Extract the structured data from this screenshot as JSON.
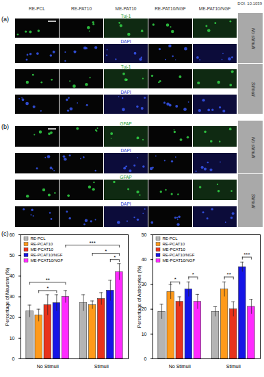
{
  "doi": "DOI: 10.1039",
  "columns": [
    "RE-PCL",
    "RE-PAT10",
    "ME-PAT10",
    "RE-PAT10/NGF",
    "ME-PAT10/NGF"
  ],
  "panels": [
    {
      "label": "(a)",
      "groups": [
        {
          "condition": "No stimuli",
          "rows": [
            "Tuj-1",
            "DAPI"
          ]
        },
        {
          "condition": "Stimuli",
          "rows": [
            "Tuj-1",
            "DAPI"
          ]
        }
      ]
    },
    {
      "label": "(b)",
      "groups": [
        {
          "condition": "No stimuli",
          "rows": [
            "GFAP",
            "DAPI"
          ]
        },
        {
          "condition": "Stimuli",
          "rows": [
            "GFAP",
            "DAPI"
          ]
        }
      ]
    }
  ],
  "chart_panel_label": "(c)",
  "chart_data": [
    {
      "type": "bar",
      "ylabel": "Percentage of Neurons (%)",
      "categories": [
        "No Stimuli",
        "Stimuli"
      ],
      "series": [
        {
          "name": "RE-PCL",
          "color": "#b4b4b4",
          "values": [
            23,
            27
          ],
          "errors": [
            3,
            4
          ]
        },
        {
          "name": "RE-PCAT10",
          "color": "#ff9a1a",
          "values": [
            21,
            26
          ],
          "errors": [
            3,
            2
          ]
        },
        {
          "name": "ME-PCAT10",
          "color": "#e8331c",
          "values": [
            26,
            29
          ],
          "errors": [
            5,
            3
          ]
        },
        {
          "name": "RE-PCAT10/NGF",
          "color": "#1515e6",
          "values": [
            27,
            33
          ],
          "errors": [
            4,
            5
          ]
        },
        {
          "name": "ME-PCAT10/NGF",
          "color": "#ff2aff",
          "values": [
            30,
            42
          ],
          "errors": [
            3,
            4
          ]
        }
      ],
      "ylim": [
        0,
        60
      ],
      "yticks": [
        0,
        10,
        20,
        30,
        40,
        50,
        60
      ],
      "grid": false,
      "legend": "top-left",
      "annotations": [
        {
          "text": "*",
          "from": [
            "No Stimuli",
            "RE-PCAT10"
          ],
          "to": [
            "No Stimuli",
            "RE-PCAT10/NGF"
          ],
          "y": 33
        },
        {
          "text": "**",
          "from": [
            "No Stimuli",
            "RE-PCL"
          ],
          "to": [
            "No Stimuli",
            "ME-PCAT10/NGF"
          ],
          "y": 37
        },
        {
          "text": "*",
          "from": [
            "Stimuli",
            "RE-PCAT10/NGF"
          ],
          "to": [
            "Stimuli",
            "ME-PCAT10/NGF"
          ],
          "y": 48
        },
        {
          "text": "*",
          "from": [
            "Stimuli",
            "RE-PCAT10"
          ],
          "to": [
            "Stimuli",
            "ME-PCAT10/NGF"
          ],
          "y": 51
        },
        {
          "text": "***",
          "from": [
            "No Stimuli",
            "ME-PCAT10/NGF"
          ],
          "to": [
            "Stimuli",
            "ME-PCAT10/NGF"
          ],
          "y": 55
        }
      ]
    },
    {
      "type": "bar",
      "ylabel": "Percentage of Astrocytes (%)",
      "categories": [
        "No Stimuli",
        "Stimuli"
      ],
      "series": [
        {
          "name": "RE-PCL",
          "color": "#b4b4b4",
          "values": [
            19,
            19
          ],
          "errors": [
            3,
            2
          ]
        },
        {
          "name": "RE-PCAT10",
          "color": "#ff9a1a",
          "values": [
            27,
            28
          ],
          "errors": [
            3,
            3
          ]
        },
        {
          "name": "ME-PCAT10",
          "color": "#e8331c",
          "values": [
            23,
            20
          ],
          "errors": [
            2,
            3
          ]
        },
        {
          "name": "RE-PCAT10/NGF",
          "color": "#1515e6",
          "values": [
            28,
            37
          ],
          "errors": [
            3,
            2
          ]
        },
        {
          "name": "ME-PCAT10/NGF",
          "color": "#ff2aff",
          "values": [
            23,
            21
          ],
          "errors": [
            3,
            3
          ]
        }
      ],
      "ylim": [
        0,
        50
      ],
      "yticks": [
        0,
        10,
        20,
        30,
        40,
        50
      ],
      "grid": false,
      "legend": "top-left",
      "annotations": [
        {
          "text": "*",
          "from": [
            "No Stimuli",
            "RE-PCAT10"
          ],
          "to": [
            "No Stimuli",
            "ME-PCAT10"
          ],
          "y": 31
        },
        {
          "text": "*",
          "from": [
            "No Stimuli",
            "RE-PCAT10/NGF"
          ],
          "to": [
            "No Stimuli",
            "ME-PCAT10/NGF"
          ],
          "y": 33
        },
        {
          "text": "**",
          "from": [
            "Stimuli",
            "RE-PCAT10"
          ],
          "to": [
            "Stimuli",
            "ME-PCAT10"
          ],
          "y": 33
        },
        {
          "text": "***",
          "from": [
            "Stimuli",
            "RE-PCAT10/NGF"
          ],
          "to": [
            "Stimuli",
            "ME-PCAT10/NGF"
          ],
          "y": 41
        }
      ]
    }
  ]
}
